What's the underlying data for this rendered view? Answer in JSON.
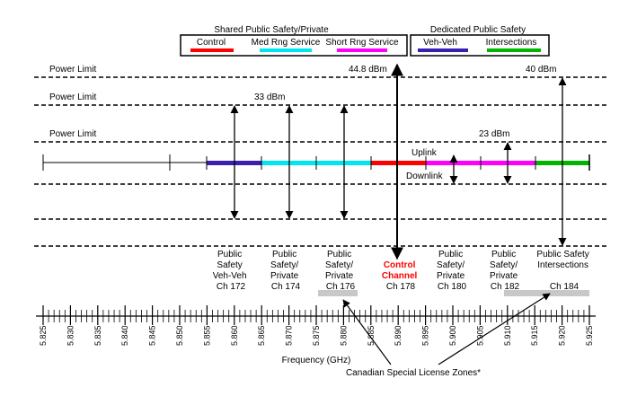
{
  "legend": {
    "shared_title": "Shared Public Safety/Private",
    "dedicated_title": "Dedicated Public Safety",
    "items": [
      {
        "label": "Control",
        "color": "#ff0000"
      },
      {
        "label": "Med Rng Service",
        "color": "#00e5ee"
      },
      {
        "label": "Short Rng Service",
        "color": "#ff00ff"
      },
      {
        "label": "Veh-Veh",
        "color": "#3a1fb0"
      },
      {
        "label": "Intersections",
        "color": "#00b400"
      }
    ]
  },
  "power_limits": {
    "label": "Power Limit",
    "values": [
      "44.8 dBm",
      "40 dBm",
      "33 dBm",
      "23 dBm"
    ]
  },
  "link_labels": {
    "uplink": "Uplink",
    "downlink": "Downlink"
  },
  "channels": [
    {
      "lines": [
        "Public",
        "Safety",
        "Veh-Veh",
        "Ch 172"
      ],
      "highlight": false
    },
    {
      "lines": [
        "Public",
        "Safety/",
        "Private",
        "Ch 174"
      ],
      "highlight": false
    },
    {
      "lines": [
        "Public",
        "Safety/",
        "Private",
        "Ch 176"
      ],
      "highlight": false
    },
    {
      "lines": [
        "Control",
        "Channel",
        "Ch 178"
      ],
      "highlight": true
    },
    {
      "lines": [
        "Public",
        "Safety/",
        "Private",
        "Ch 180"
      ],
      "highlight": false
    },
    {
      "lines": [
        "Public",
        "Safety/",
        "Private",
        "Ch 182"
      ],
      "highlight": false
    },
    {
      "lines": [
        "Public Safety",
        "Intersections",
        "Ch 184"
      ],
      "highlight": false
    }
  ],
  "highlight_color": "#ff0000",
  "frequency_ticks": [
    "5.825",
    "5.830",
    "5.835",
    "5.840",
    "5.845",
    "5.850",
    "5.855",
    "5.860",
    "5.865",
    "5.870",
    "5.875",
    "5.880",
    "5.885",
    "5.890",
    "5.895",
    "5.900",
    "5.905",
    "5.910",
    "5.915",
    "5.920",
    "5.925"
  ],
  "axis_title": "Frequency (GHz)",
  "annotation": "Canadian Special License Zones*"
}
